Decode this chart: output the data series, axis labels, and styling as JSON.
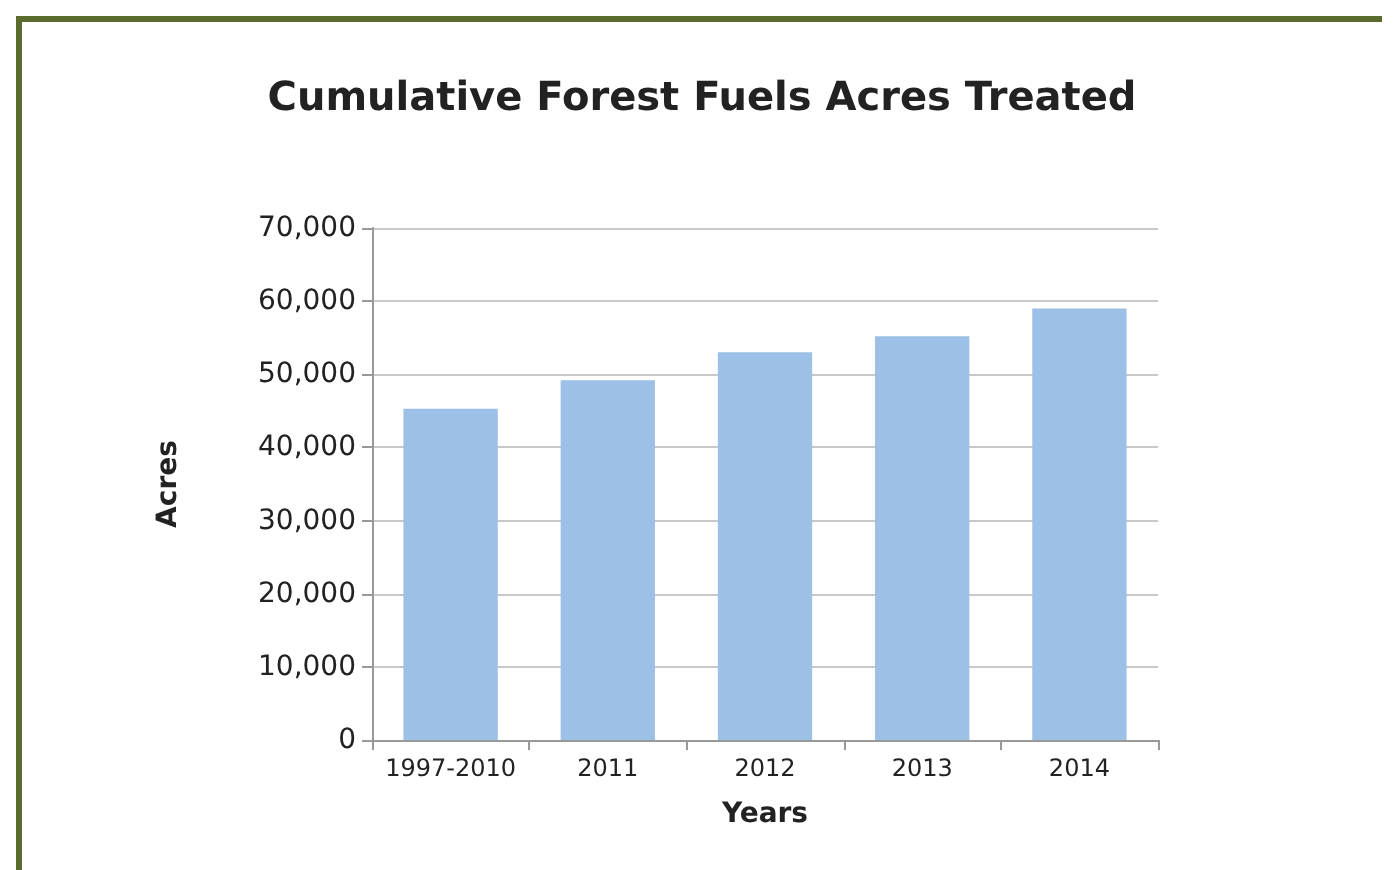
{
  "chart_data": {
    "type": "bar",
    "title": "Cumulative Forest Fuels Acres Treated",
    "xlabel": "Years",
    "ylabel": "Acres",
    "categories": [
      "1997-2010",
      "2011",
      "2012",
      "2013",
      "2014"
    ],
    "values": [
      45300,
      49200,
      53000,
      55200,
      59000
    ],
    "color": "#9dc0e6",
    "ylim": [
      0,
      70000
    ],
    "yticks": [
      {
        "value": 0,
        "label": "0"
      },
      {
        "value": 10000,
        "label": "10,000"
      },
      {
        "value": 20000,
        "label": "20,000"
      },
      {
        "value": 30000,
        "label": "30,000"
      },
      {
        "value": 40000,
        "label": "40,000"
      },
      {
        "value": 50000,
        "label": "50,000"
      },
      {
        "value": 60000,
        "label": "60,000"
      },
      {
        "value": 70000,
        "label": "70,000"
      }
    ],
    "grid": "y"
  }
}
